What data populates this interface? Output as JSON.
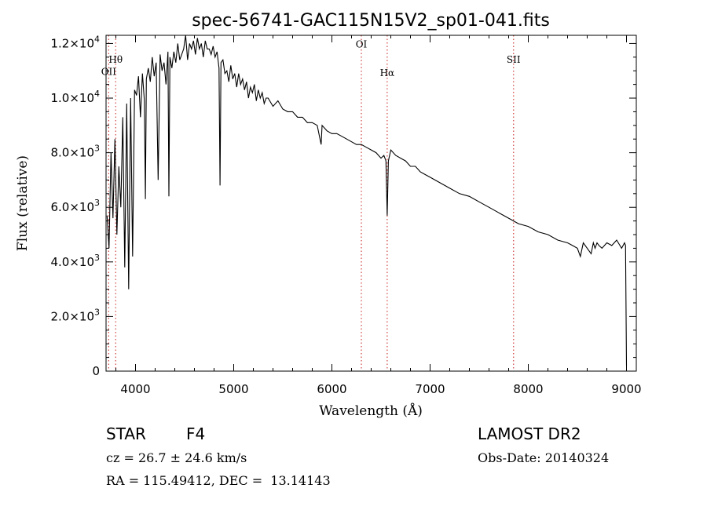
{
  "chart_data": {
    "type": "line",
    "title": "spec-56741-GAC115N15V2_sp01-041.fits",
    "xlabel": "Wavelength (Å)",
    "ylabel": "Flux (relative)",
    "xlim": [
      3700,
      9100
    ],
    "ylim": [
      0,
      12300
    ],
    "x_ticks": [
      4000,
      5000,
      6000,
      7000,
      8000,
      9000
    ],
    "x_tick_labels": [
      "4000",
      "5000",
      "6000",
      "7000",
      "8000",
      "9000"
    ],
    "y_ticks": [
      0,
      2000,
      4000,
      6000,
      8000,
      10000,
      12000
    ],
    "y_tick_labels": [
      {
        "mantissa": "0",
        "exp": ""
      },
      {
        "mantissa": "2.0×10",
        "exp": "3"
      },
      {
        "mantissa": "4.0×10",
        "exp": "3"
      },
      {
        "mantissa": "6.0×10",
        "exp": "3"
      },
      {
        "mantissa": "8.0×10",
        "exp": "3"
      },
      {
        "mantissa": "1.0×10",
        "exp": "4"
      },
      {
        "mantissa": "1.2×10",
        "exp": "4"
      }
    ],
    "lines": [
      {
        "label": "OII",
        "x": 3727,
        "label_y": 10850
      },
      {
        "label": "Hθ",
        "x": 3798,
        "label_y": 11300
      },
      {
        "label": "OI",
        "x": 6300,
        "label_y": 11850
      },
      {
        "label": "Hα",
        "x": 6563,
        "label_y": 10800
      },
      {
        "label": "SII",
        "x": 7850,
        "label_y": 11300
      }
    ],
    "line_color": "#000000",
    "marker_color": "#d04040",
    "series": [
      {
        "x": [
          3710,
          3730,
          3750,
          3770,
          3790,
          3810,
          3830,
          3850,
          3870,
          3890,
          3910,
          3930,
          3950,
          3970,
          3990,
          4010,
          4030,
          4050,
          4070,
          4090,
          4101,
          4110,
          4130,
          4150,
          4170,
          4190,
          4210,
          4230,
          4250,
          4270,
          4290,
          4310,
          4330,
          4340,
          4350,
          4370,
          4390,
          4410,
          4430,
          4450,
          4470,
          4490,
          4510,
          4530,
          4550,
          4570,
          4590,
          4610,
          4630,
          4650,
          4670,
          4690,
          4710,
          4730,
          4750,
          4770,
          4790,
          4810,
          4830,
          4850,
          4861,
          4870,
          4890,
          4910,
          4930,
          4950,
          4970,
          4990,
          5010,
          5030,
          5050,
          5070,
          5090,
          5110,
          5130,
          5150,
          5170,
          5190,
          5210,
          5230,
          5250,
          5270,
          5290,
          5310,
          5330,
          5350,
          5400,
          5450,
          5500,
          5550,
          5600,
          5650,
          5700,
          5750,
          5800,
          5850,
          5890,
          5900,
          5950,
          6000,
          6050,
          6100,
          6150,
          6200,
          6250,
          6300,
          6350,
          6400,
          6450,
          6500,
          6530,
          6550,
          6563,
          6575,
          6600,
          6650,
          6700,
          6750,
          6800,
          6850,
          6900,
          6950,
          7000,
          7100,
          7200,
          7300,
          7400,
          7500,
          7600,
          7700,
          7800,
          7900,
          8000,
          8100,
          8200,
          8300,
          8400,
          8450,
          8500,
          8530,
          8542,
          8560,
          8600,
          8640,
          8662,
          8680,
          8700,
          8720,
          8750,
          8800,
          8850,
          8900,
          8950,
          8980,
          8990,
          9000
        ],
        "y": [
          5700,
          4500,
          8000,
          5600,
          8500,
          5000,
          7500,
          6000,
          9300,
          3800,
          9800,
          3000,
          10000,
          4200,
          10300,
          10100,
          10800,
          9300,
          10900,
          9900,
          6300,
          10700,
          11100,
          10600,
          11500,
          10800,
          11300,
          7000,
          11600,
          11000,
          11300,
          10500,
          11700,
          6400,
          11500,
          11100,
          11700,
          11300,
          12000,
          11400,
          11600,
          11800,
          12300,
          11400,
          12000,
          11800,
          12100,
          11600,
          12200,
          11800,
          12000,
          11500,
          12100,
          11800,
          11800,
          11600,
          11900,
          11500,
          11700,
          11100,
          6800,
          11300,
          11400,
          10900,
          11000,
          10600,
          11200,
          10700,
          10900,
          10400,
          10900,
          10500,
          10700,
          10300,
          10600,
          10000,
          10400,
          10200,
          10500,
          9900,
          10300,
          10000,
          10200,
          9800,
          10000,
          10000,
          9700,
          9900,
          9600,
          9500,
          9500,
          9300,
          9300,
          9100,
          9100,
          9000,
          8300,
          9000,
          8800,
          8700,
          8700,
          8600,
          8500,
          8400,
          8300,
          8300,
          8200,
          8100,
          8000,
          7800,
          7900,
          7700,
          5700,
          7700,
          8100,
          7900,
          7800,
          7700,
          7500,
          7500,
          7300,
          7200,
          7100,
          6900,
          6700,
          6500,
          6400,
          6200,
          6000,
          5800,
          5600,
          5400,
          5300,
          5100,
          5000,
          4800,
          4700,
          4600,
          4500,
          4200,
          4400,
          4700,
          4500,
          4300,
          4700,
          4500,
          4700,
          4600,
          4500,
          4700,
          4600,
          4800,
          4500,
          4700,
          4600,
          200
        ]
      }
    ]
  },
  "info": {
    "class_label": "STAR",
    "subclass_label": "F4",
    "survey": "LAMOST DR2",
    "cz": "cz = 26.7 ± 24.6 km/s",
    "obs_date": "Obs-Date: 20140324",
    "coords": "RA = 115.49412, DEC =  13.14143"
  }
}
